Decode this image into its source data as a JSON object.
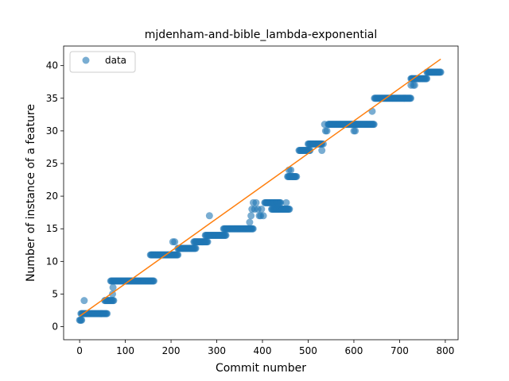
{
  "chart_data": {
    "type": "scatter",
    "title": "mjdenham-and-bible_lambda-exponential",
    "xlabel": "Commit number",
    "ylabel": "Number of instance of a feature",
    "xlim": [
      -35,
      828
    ],
    "ylim": [
      -2,
      43
    ],
    "xticks": [
      0,
      100,
      200,
      300,
      400,
      500,
      600,
      700,
      800
    ],
    "yticks": [
      0,
      5,
      10,
      15,
      20,
      25,
      30,
      35,
      40
    ],
    "grid": false,
    "legend": {
      "position": "top-left",
      "entries": [
        "data"
      ]
    },
    "colors": {
      "points": "#1f77b4",
      "fit_line": "#ff7f0e"
    },
    "series": [
      {
        "name": "data",
        "kind": "scatter",
        "segments": [
          {
            "x_start": 0,
            "x_end": 5,
            "y": 1
          },
          {
            "x_start": 3,
            "x_end": 60,
            "y": 2
          },
          {
            "x_start": 55,
            "x_end": 75,
            "y": 4
          },
          {
            "x_start": 68,
            "x_end": 163,
            "y": 7
          },
          {
            "x_start": 155,
            "x_end": 215,
            "y": 11
          },
          {
            "x_start": 215,
            "x_end": 255,
            "y": 12
          },
          {
            "x_start": 250,
            "x_end": 280,
            "y": 13
          },
          {
            "x_start": 275,
            "x_end": 320,
            "y": 14
          },
          {
            "x_start": 315,
            "x_end": 380,
            "y": 15
          },
          {
            "x_start": 405,
            "x_end": 440,
            "y": 19
          },
          {
            "x_start": 420,
            "x_end": 460,
            "y": 18
          },
          {
            "x_start": 455,
            "x_end": 475,
            "y": 23
          },
          {
            "x_start": 480,
            "x_end": 505,
            "y": 27
          },
          {
            "x_start": 500,
            "x_end": 530,
            "y": 28
          },
          {
            "x_start": 545,
            "x_end": 605,
            "y": 31
          },
          {
            "x_start": 605,
            "x_end": 645,
            "y": 31
          },
          {
            "x_start": 645,
            "x_end": 725,
            "y": 35
          },
          {
            "x_start": 725,
            "x_end": 760,
            "y": 38
          },
          {
            "x_start": 760,
            "x_end": 790,
            "y": 39
          }
        ],
        "points": [
          [
            10,
            4
          ],
          [
            72,
            5
          ],
          [
            73,
            6
          ],
          [
            208,
            13
          ],
          [
            204,
            13
          ],
          [
            284,
            17
          ],
          [
            372,
            16
          ],
          [
            375,
            17
          ],
          [
            377,
            18
          ],
          [
            380,
            19
          ],
          [
            383,
            18
          ],
          [
            386,
            19
          ],
          [
            390,
            18
          ],
          [
            393,
            17
          ],
          [
            396,
            17
          ],
          [
            398,
            18
          ],
          [
            402,
            17
          ],
          [
            452,
            19
          ],
          [
            458,
            24
          ],
          [
            462,
            24
          ],
          [
            466,
            23
          ],
          [
            470,
            23
          ],
          [
            530,
            27
          ],
          [
            533,
            28
          ],
          [
            536,
            31
          ],
          [
            538,
            30
          ],
          [
            541,
            30
          ],
          [
            544,
            31
          ],
          [
            600,
            30
          ],
          [
            603,
            30
          ],
          [
            640,
            33
          ],
          [
            725,
            37
          ],
          [
            727,
            38
          ],
          [
            730,
            37
          ],
          [
            733,
            37
          ]
        ]
      },
      {
        "name": "",
        "kind": "line",
        "x": [
          0,
          790
        ],
        "y": [
          1.6,
          41
        ]
      }
    ]
  }
}
